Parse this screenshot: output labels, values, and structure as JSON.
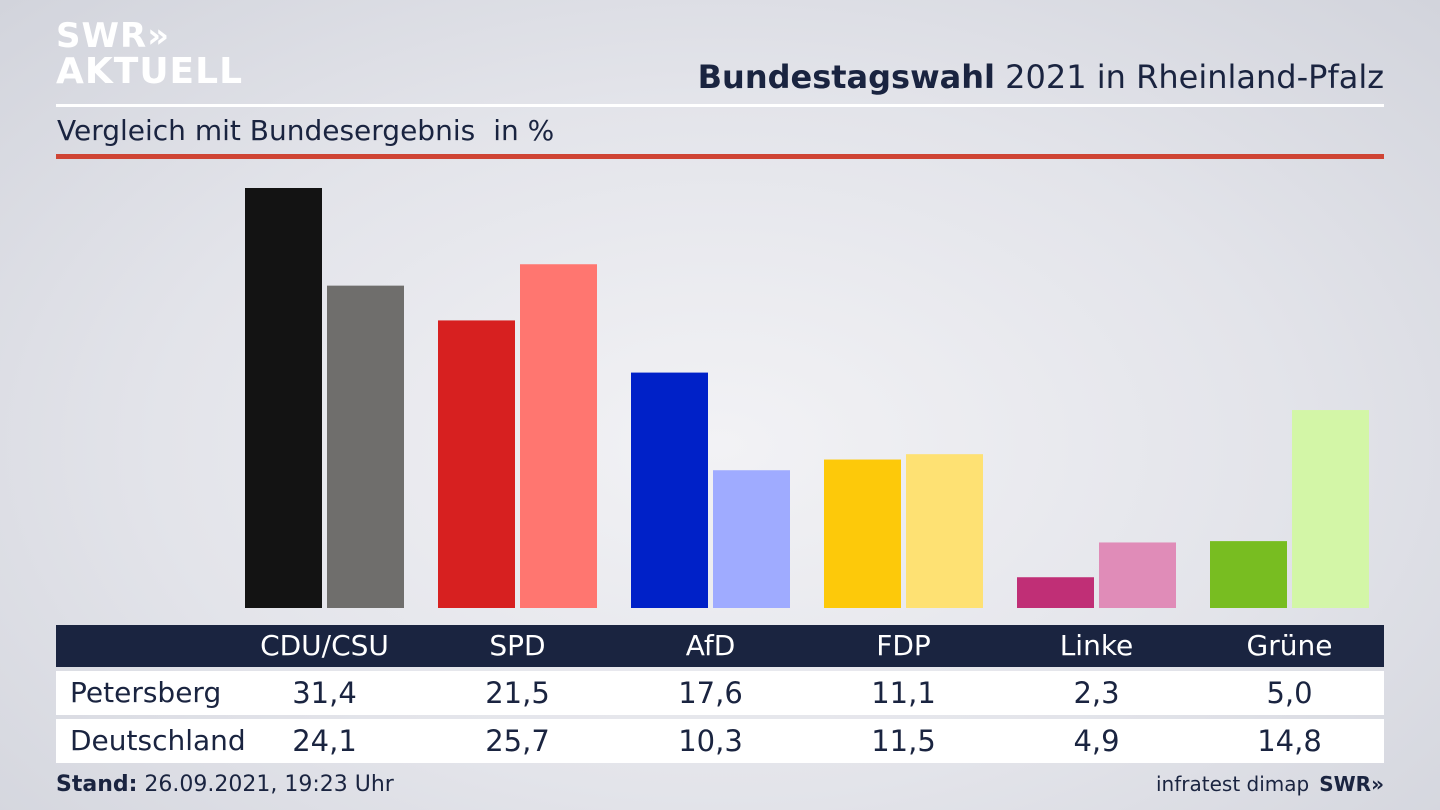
{
  "branding": {
    "logo_line1": "SWR»",
    "logo_line2": "AKTUELL",
    "source": "infratest dimap",
    "footer_logo": "SWR»"
  },
  "header": {
    "title_bold": "Bundestagswahl",
    "title_rest": "2021 in Rheinland-Pfalz",
    "subtitle": "Vergleich mit Bundesergebnis",
    "unit": "in %"
  },
  "footer": {
    "stand_label": "Stand:",
    "stand_value": "26.09.2021, 19:23 Uhr"
  },
  "colors": {
    "title": "#1a2440",
    "table_header_bg": "#1a2440",
    "accent_rule": "#cf4434"
  },
  "chart_data": {
    "type": "bar",
    "title": "Bundestagswahl 2021 in Rheinland-Pfalz",
    "subtitle": "Vergleich mit Bundesergebnis",
    "unit": "in %",
    "categories": [
      "CDU/CSU",
      "SPD",
      "AfD",
      "FDP",
      "Linke",
      "Grüne"
    ],
    "series": [
      {
        "name": "Petersberg",
        "values": [
          31.4,
          21.5,
          17.6,
          11.1,
          2.3,
          5.0
        ],
        "labels": [
          "31,4",
          "21,5",
          "17,6",
          "11,1",
          "2,3",
          "5,0"
        ],
        "colors": [
          "#131313",
          "#d72020",
          "#0021c8",
          "#fdc90a",
          "#c02f76",
          "#78bd21"
        ]
      },
      {
        "name": "Deutschland",
        "values": [
          24.1,
          25.7,
          10.3,
          11.5,
          4.9,
          14.8
        ],
        "labels": [
          "24,1",
          "25,7",
          "10,3",
          "11,5",
          "4,9",
          "14,8"
        ],
        "colors": [
          "#6f6e6c",
          "#ff7670",
          "#9fabff",
          "#fee173",
          "#e08cb8",
          "#d3f6a7"
        ]
      }
    ],
    "ylim": [
      0,
      31.4
    ],
    "grid": false,
    "legend": "table-below"
  }
}
